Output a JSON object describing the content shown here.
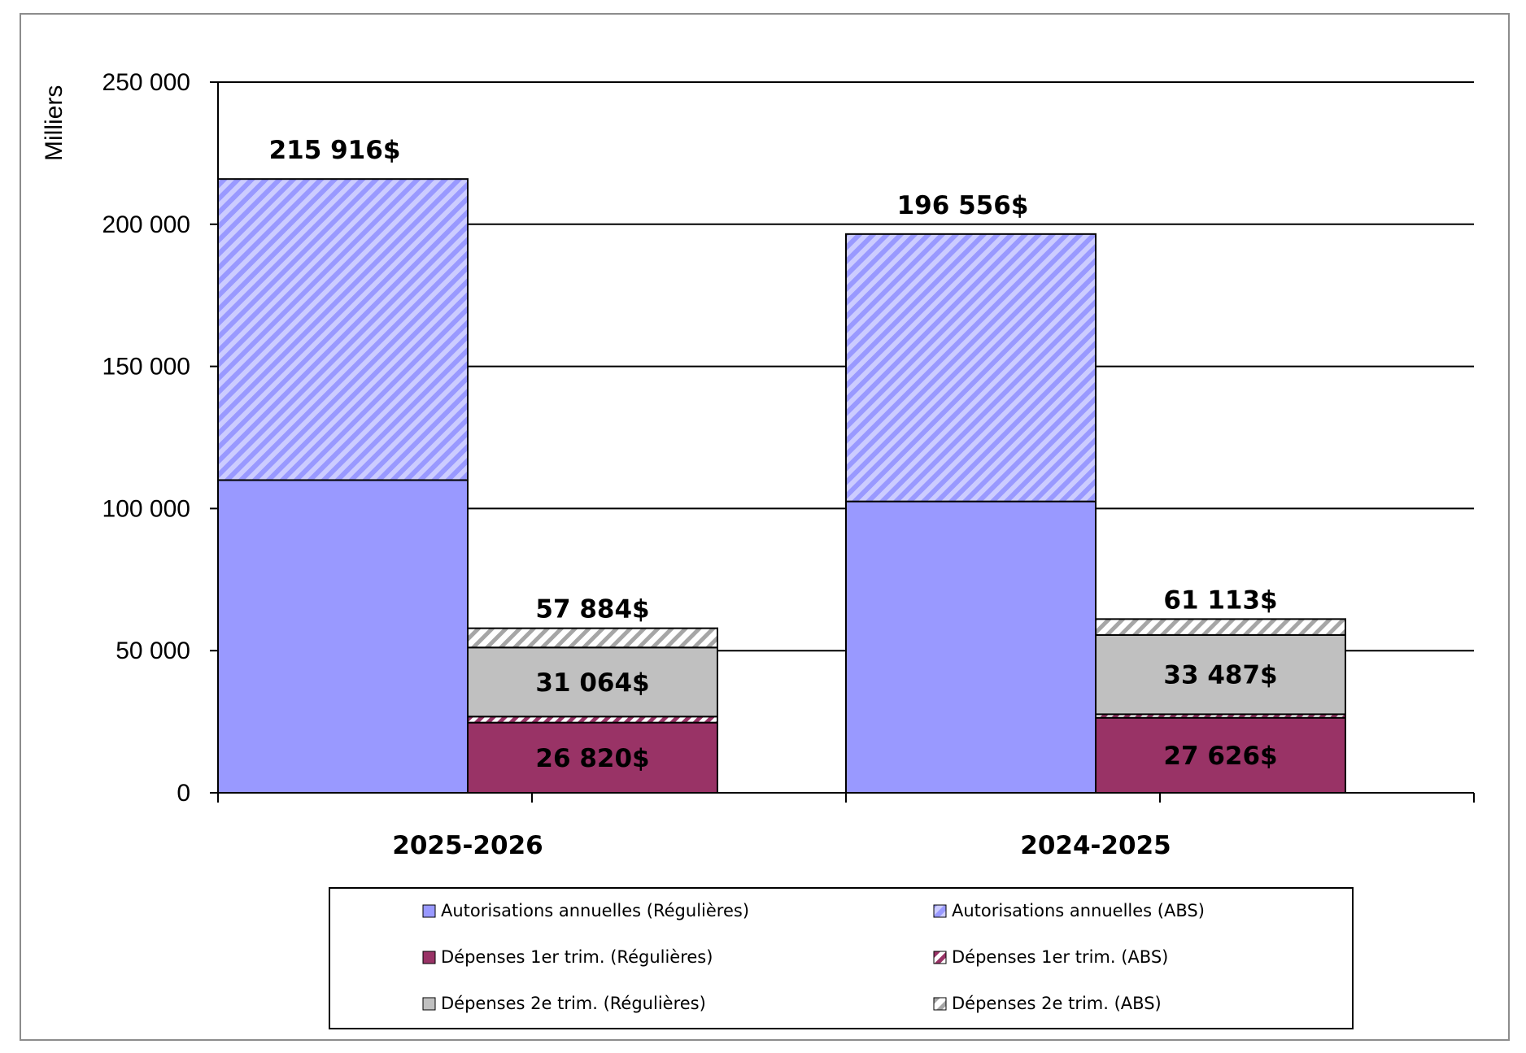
{
  "chart_data": {
    "type": "bar",
    "stacked": true,
    "ylabel": "Milliers",
    "ylim": [
      0,
      250000
    ],
    "yticks": [
      0,
      50000,
      100000,
      150000,
      200000,
      250000
    ],
    "ytick_labels": [
      "0",
      "50 000",
      "100 000",
      "150 000",
      "200 000",
      "250 000"
    ],
    "grid": true,
    "legend_position": "bottom",
    "categories": [
      "2025-2026",
      "2024-2025"
    ],
    "series": [
      {
        "name": "Autorisations annuelles (Régulières)",
        "stack": "authorities",
        "color": "#9999ff",
        "pattern": "solid",
        "values": [
          110000,
          102500
        ]
      },
      {
        "name": "Autorisations annuelles (ABS)",
        "stack": "authorities",
        "color": "#9999ff",
        "pattern": "hatch",
        "values": [
          105916,
          94056
        ]
      },
      {
        "name": "Dépenses 1er trim. (Régulières)",
        "stack": "expenditures",
        "color": "#993366",
        "pattern": "solid",
        "values": [
          24700,
          26400
        ]
      },
      {
        "name": "Dépenses 1er trim. (ABS)",
        "stack": "expenditures",
        "color": "#993366",
        "pattern": "hatch",
        "values": [
          2120,
          1226
        ]
      },
      {
        "name": "Dépenses 2e trim. (Régulières)",
        "stack": "expenditures",
        "color": "#c0c0c0",
        "pattern": "solid",
        "values": [
          24300,
          27900
        ]
      },
      {
        "name": "Dépenses 2e trim. (ABS)",
        "stack": "expenditures",
        "color": "#ffffff",
        "pattern": "hatch",
        "values": [
          6764,
          5587
        ]
      }
    ],
    "data_labels": {
      "authorities_total": [
        "215 916$",
        "196 556$"
      ],
      "expenditures_total": [
        "57 884$",
        "61 113$"
      ],
      "q2_expenditures": [
        "31 064$",
        "33 487$"
      ],
      "q1_expenditures": [
        "26 820$",
        "27 626$"
      ]
    }
  }
}
